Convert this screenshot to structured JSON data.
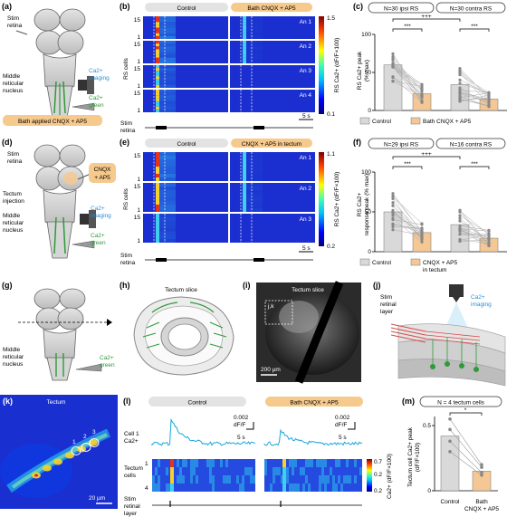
{
  "panels": {
    "a": {
      "letter": "(a)",
      "stim": "Stim",
      "retina": "retina",
      "mrn1": "Middle",
      "mrn2": "reticular",
      "mrn3": "nucleus",
      "ca_imaging1": "Ca2+",
      "ca_imaging2": "imaging",
      "ca_green1": "Ca2+",
      "ca_green2": "green",
      "drug_banner": "Bath applied CNQX + AP5"
    },
    "b": {
      "letter": "(b)",
      "control": "Control",
      "drug": "Bath CNQX + AP5",
      "animals": [
        "An 1",
        "An 2",
        "An 3",
        "An 4"
      ],
      "ytick_top": "15",
      "ytick_bottom": "1",
      "ylabel": "RS cells",
      "cbar_label": "RS Ca2+ (dF/F×100)",
      "cbar_max": "1.5",
      "cbar_min": "0.1",
      "scale": "5 s",
      "stim1": "Stim",
      "stim2": "retina"
    },
    "c": {
      "letter": "(c)",
      "group1": "N=30 ipsi RS",
      "group2": "N=30 contra RS",
      "ylabel1": "RS Ca2+ peak",
      "ylabel2": "(% max)",
      "yticks": [
        "100",
        "50",
        "0"
      ],
      "sig_left": "***",
      "sig_right": "***",
      "sig_between": "+++",
      "legend_control": "Control",
      "legend_drug": "Bath CNQX + AP5"
    },
    "d": {
      "letter": "(d)",
      "stim": "Stim",
      "retina": "retina",
      "tectum1": "Tectum",
      "tectum2": "injection",
      "drug1": "CNQX",
      "drug2": "+ AP5",
      "mrn1": "Middle",
      "mrn2": "reticular",
      "mrn3": "nucleus",
      "ca_imaging1": "Ca2+",
      "ca_imaging2": "imaging",
      "ca_green1": "Ca2+",
      "ca_green2": "green"
    },
    "e": {
      "letter": "(e)",
      "control": "Control",
      "drug": "CNQX + AP5 in tectum",
      "animals": [
        "An 1",
        "An 2",
        "An 3"
      ],
      "ytick_top": "15",
      "ytick_bottom": "1",
      "ylabel": "RS cells",
      "cbar_label": "RS Ca2+ (dF/F×100)",
      "cbar_max": "1.1",
      "cbar_min": "0.2",
      "scale": "5 s",
      "stim1": "Stim",
      "stim2": "retina"
    },
    "f": {
      "letter": "(f)",
      "group1": "N=29 ipsi RS",
      "group2": "N=16 contra RS",
      "ylabel1": "RS Ca2+",
      "ylabel2": "response peak (% max)",
      "yticks": [
        "100",
        "50",
        "0"
      ],
      "sig_left": "***",
      "sig_right": "***",
      "sig_between": "+++",
      "legend_control": "Control",
      "legend_drug1": "CNQX + AP5",
      "legend_drug2": "in tectum"
    },
    "g": {
      "letter": "(g)",
      "mrn1": "Middle",
      "mrn2": "reticular",
      "mrn3": "nucleus",
      "ca1": "Ca2+",
      "ca2": "green"
    },
    "h": {
      "letter": "(h)",
      "title": "Tectum slice"
    },
    "i": {
      "letter": "(i)",
      "title": "Tectum slice",
      "box": "j,k",
      "scale": "200 µm"
    },
    "j": {
      "letter": "(j)",
      "stim1": "Stim",
      "stim2": "retinal",
      "stim3": "layer",
      "ca1": "Ca2+",
      "ca2": "imaging"
    },
    "k": {
      "letter": "(k)",
      "title": "Tectum",
      "cells": [
        "1",
        "2",
        "3"
      ],
      "scale": "20 µm"
    },
    "l": {
      "letter": "(l)",
      "control": "Control",
      "drug": "Bath CNQX + AP5",
      "trace1": "Cell 1",
      "trace2": "Ca2+",
      "scale_y1": "0.002",
      "scale_y2": "dF/F",
      "scale_x": "5 s",
      "rows1": "Tectum",
      "rows2": "cells",
      "row_top": "1",
      "row_bot": "4",
      "cbar_label": "Ca2+ (dF/F×100)",
      "cbar_max": "0.7",
      "cbar_mid": "0.2",
      "cbar_min": "0.2",
      "stim1": "Stim",
      "stim2": "retinal",
      "stim3": "layer"
    },
    "m": {
      "letter": "(m)",
      "group": "N = 4 tectum cells",
      "ylabel1": "Tectum cell Ca2+ peak",
      "ylabel2": "(dF/F×100)",
      "yticks": [
        "0.5",
        "0"
      ],
      "sig": "*",
      "xlab_control": "Control",
      "xlab_drug1": "Bath",
      "xlab_drug2": "CNQX + AP5"
    }
  },
  "colors": {
    "control_bar": "#d9d9d9",
    "drug_bar": "#f4c795",
    "drug_banner": "#f6c98d",
    "ca_blue": "#2a8fd6",
    "ca_green": "#2e9a3a",
    "heat_bg": "#1a2fd0",
    "trace": "#19a6dc"
  }
}
